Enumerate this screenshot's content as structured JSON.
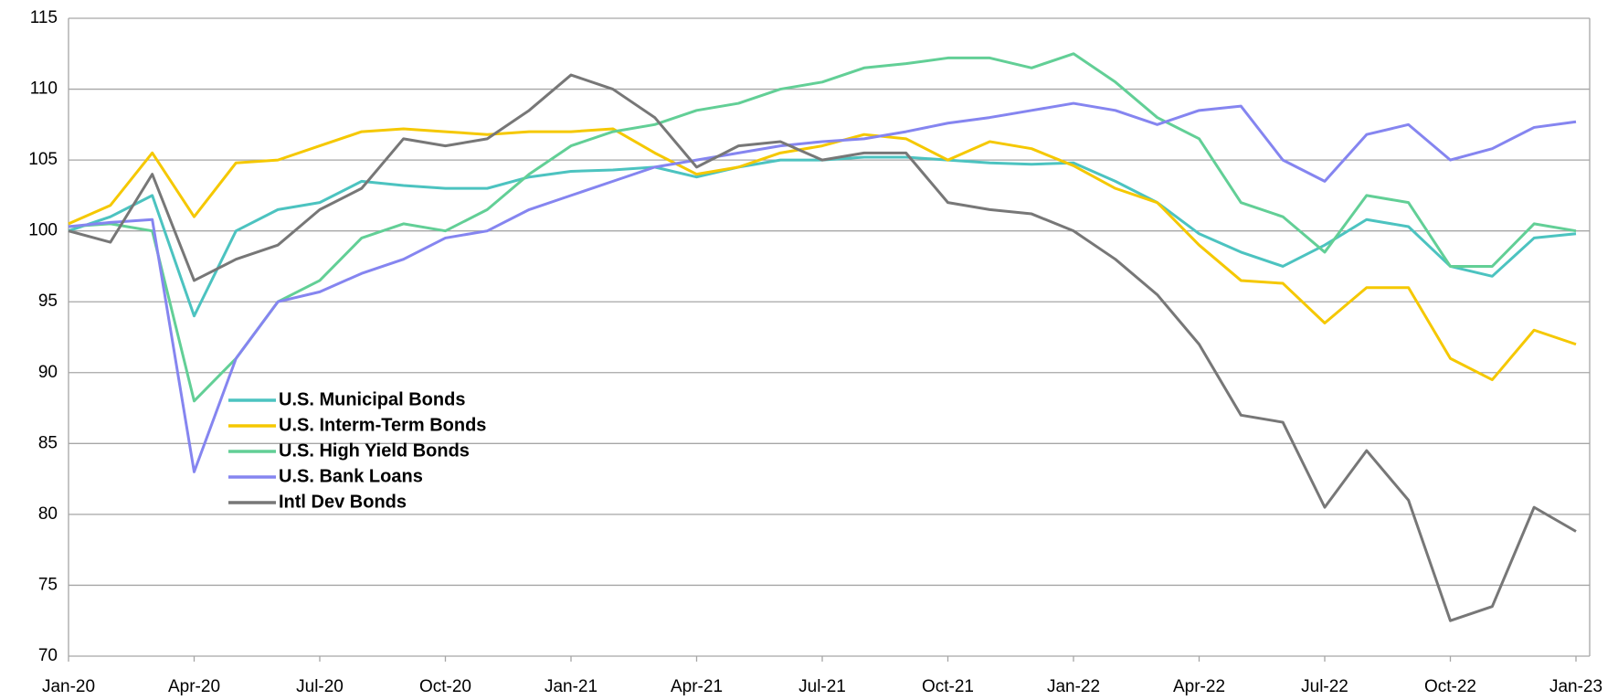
{
  "chart_data": {
    "type": "line",
    "categories": [
      "Jan-20",
      null,
      null,
      "Apr-20",
      null,
      null,
      "Jul-20",
      null,
      null,
      "Oct-20",
      null,
      null,
      "Jan-21",
      null,
      null,
      "Apr-21",
      null,
      null,
      "Jul-21",
      null,
      null,
      "Oct-21",
      null,
      null,
      "Jan-22",
      null,
      null,
      "Apr-22",
      null,
      null,
      "Jul-22",
      null,
      null,
      "Oct-22",
      null,
      null,
      "Jan-23"
    ],
    "ylim": [
      70,
      115
    ],
    "yticks": [
      70,
      75,
      80,
      85,
      90,
      95,
      100,
      105,
      110,
      115
    ],
    "grid": true,
    "legend": "lower left",
    "series": [
      {
        "name": "U.S.  Municipal Bonds",
        "color": "#4cc3c0",
        "values": [
          100,
          101,
          102.5,
          94,
          100,
          101.5,
          102,
          103.5,
          103.2,
          103,
          103,
          103.8,
          104.2,
          104.3,
          104.5,
          103.8,
          104.5,
          105,
          105,
          105.2,
          105.2,
          105,
          104.8,
          104.7,
          104.8,
          103.5,
          102,
          99.8,
          98.5,
          97.5,
          99,
          100.8,
          100.3,
          97.5,
          96.8,
          99.5,
          99.8
        ]
      },
      {
        "name": "U.S. Interm-Term Bonds",
        "color": "#f5c800",
        "values": [
          100.5,
          101.8,
          105.5,
          101,
          104.8,
          105,
          106,
          107,
          107.2,
          107,
          106.8,
          107,
          107,
          107.2,
          105.5,
          104,
          104.5,
          105.5,
          106,
          106.8,
          106.5,
          105,
          106.3,
          105.8,
          104.6,
          103,
          102,
          99,
          96.5,
          96.3,
          93.5,
          96,
          96,
          91,
          89.5,
          93,
          92
        ]
      },
      {
        "name": "U.S. High Yield Bonds",
        "color": "#62cf96",
        "values": [
          100.3,
          100.5,
          100,
          88,
          91,
          95,
          96.5,
          99.5,
          100.5,
          100,
          101.5,
          104,
          106,
          107,
          107.5,
          108.5,
          109,
          110,
          110.5,
          111.5,
          111.8,
          112.2,
          112.2,
          111.5,
          112.5,
          110.5,
          108,
          106.5,
          102,
          101,
          98.5,
          102.5,
          102,
          97.5,
          97.5,
          100.5,
          100
        ]
      },
      {
        "name": "U.S. Bank Loans",
        "color": "#8585f0",
        "values": [
          100.3,
          100.6,
          100.8,
          83,
          91,
          95,
          95.7,
          97,
          98,
          99.5,
          100,
          101.5,
          102.5,
          103.5,
          104.5,
          105,
          105.5,
          106,
          106.3,
          106.5,
          107,
          107.6,
          108,
          108.5,
          109,
          108.5,
          107.5,
          108.5,
          108.8,
          105,
          103.5,
          106.8,
          107.5,
          105,
          105.8,
          107.3,
          107.7
        ]
      },
      {
        "name": "Intl Dev Bonds",
        "color": "#777777",
        "values": [
          100,
          99.2,
          104,
          96.5,
          98,
          99,
          101.5,
          103,
          106.5,
          106,
          106.5,
          108.5,
          111,
          110,
          108,
          104.5,
          106,
          106.3,
          105,
          105.5,
          105.5,
          102,
          101.5,
          101.2,
          100,
          98,
          95.5,
          92,
          87,
          86.5,
          80.5,
          84.5,
          81,
          72.5,
          73.5,
          80.5,
          78.8
        ]
      }
    ]
  }
}
